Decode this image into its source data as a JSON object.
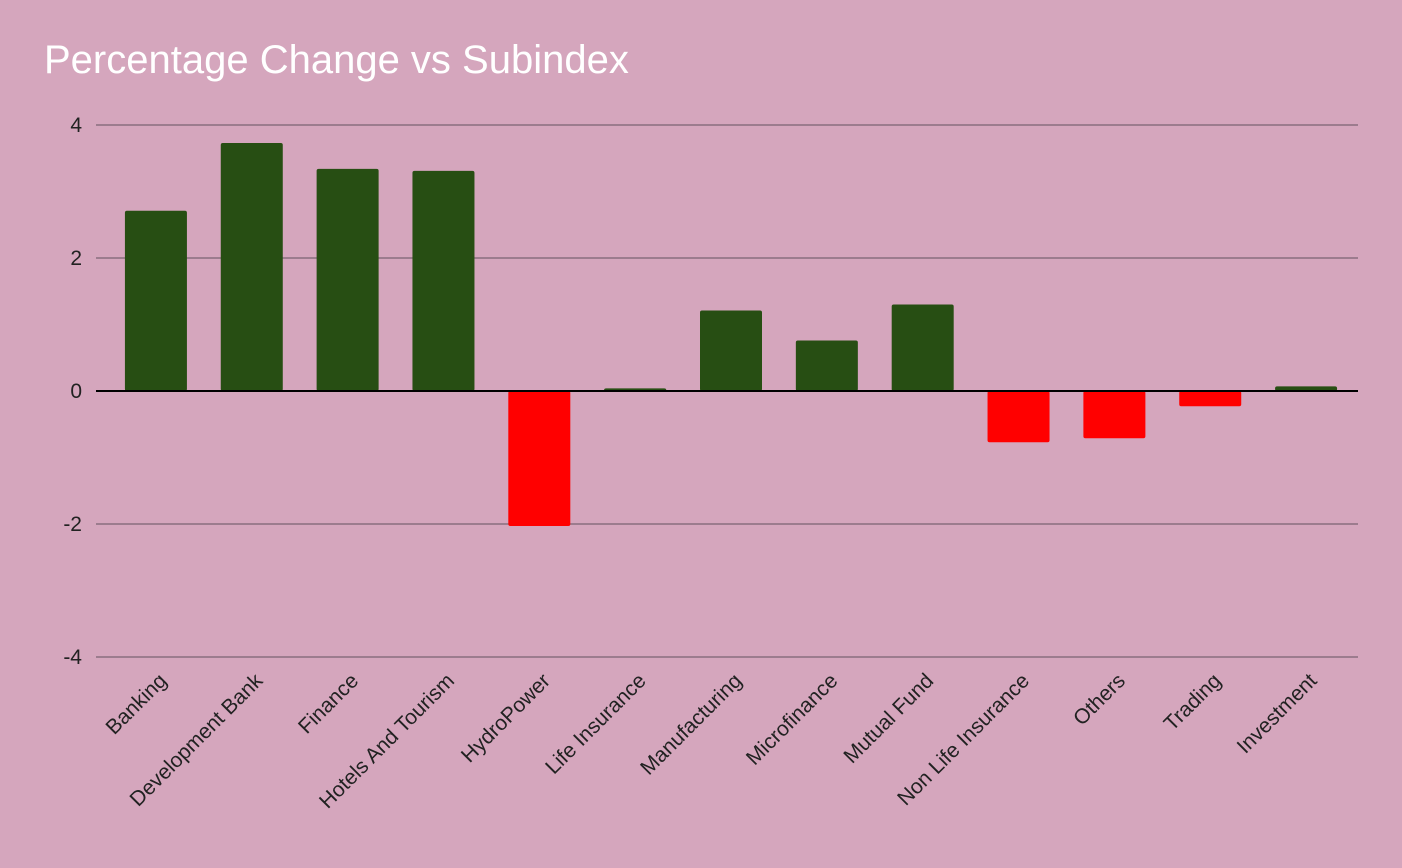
{
  "chart_data": {
    "type": "bar",
    "title": "Percentage Change vs Subindex",
    "xlabel": "",
    "ylabel": "",
    "ylim": [
      -4,
      4
    ],
    "yticks": [
      4,
      2,
      0,
      -2,
      -4
    ],
    "grid": true,
    "legend": "none",
    "categories": [
      "Banking",
      "Development Bank",
      "Finance",
      "Hotels And Tourism",
      "HydroPower",
      "Life Insurance",
      "Manufacturing",
      "Microfinance",
      "Mutual Fund",
      "Non Life Insurance",
      "Others",
      "Trading",
      "Investment"
    ],
    "values": [
      2.71,
      3.73,
      3.34,
      3.31,
      -2.03,
      0.04,
      1.21,
      0.76,
      1.3,
      -0.77,
      -0.71,
      -0.23,
      0.07
    ],
    "colors": {
      "positive": "#274e13",
      "negative": "#ff0000",
      "gridline": "#8a6f7e",
      "zero_line": "#000000",
      "background": "#d5a6bd",
      "title": "#ffffff"
    }
  }
}
